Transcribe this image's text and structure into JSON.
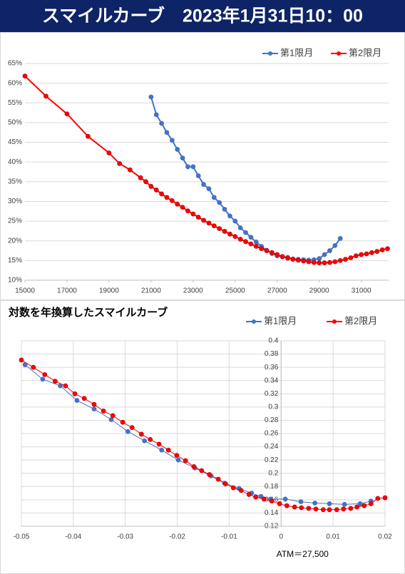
{
  "chart_data": [
    {
      "type": "line",
      "title": "スマイルカーブ　2023年1月31日10：00",
      "xlim": [
        15000,
        32300
      ],
      "xticks": [
        15000,
        17000,
        19000,
        21000,
        23000,
        25000,
        27000,
        29000,
        31000
      ],
      "ylim": [
        10,
        65
      ],
      "yticks": [
        {
          "value": 10,
          "label": "10%"
        },
        {
          "value": 15,
          "label": "15%"
        },
        {
          "value": 20,
          "label": "20%"
        },
        {
          "value": 25,
          "label": "25%"
        },
        {
          "value": 30,
          "label": "30%"
        },
        {
          "value": 35,
          "label": "35%"
        },
        {
          "value": 40,
          "label": "40%"
        },
        {
          "value": 45,
          "label": "45%"
        },
        {
          "value": 50,
          "label": "50%"
        },
        {
          "value": 55,
          "label": "55%"
        },
        {
          "value": 60,
          "label": "60%"
        },
        {
          "value": 65,
          "label": "65%"
        }
      ],
      "grid": "y",
      "legend": "top-right",
      "series": [
        {
          "name": "第1限月",
          "color": "#4472c4",
          "x": [
            21000,
            21250,
            21500,
            21750,
            22000,
            22250,
            22500,
            22750,
            23000,
            23250,
            23500,
            23750,
            24000,
            24250,
            24500,
            24750,
            25000,
            25250,
            25500,
            25750,
            26000,
            26250,
            26500,
            26750,
            27000,
            27250,
            27500,
            27750,
            28000,
            28250,
            28500,
            28750,
            29000,
            29250,
            29500,
            29750,
            30000
          ],
          "values": [
            56.5,
            52,
            49.8,
            47.5,
            45.5,
            43.2,
            41,
            38.8,
            38.8,
            36.5,
            34.3,
            33.2,
            31,
            29.7,
            28,
            26.3,
            25,
            23.3,
            22.1,
            20.9,
            19.7,
            18.6,
            17.6,
            16.8,
            16.2,
            15.9,
            15.8,
            15.4,
            15.3,
            15.2,
            15.1,
            15.2,
            15.5,
            16.5,
            17.5,
            18.8,
            20.6
          ]
        },
        {
          "name": "第2限月",
          "color": "#ff0000",
          "x": [
            15000,
            16000,
            17000,
            18000,
            19000,
            19500,
            20000,
            20500,
            20750,
            21000,
            21250,
            21500,
            21750,
            22000,
            22250,
            22500,
            22750,
            23000,
            23250,
            23500,
            23750,
            24000,
            24250,
            24500,
            24750,
            25000,
            25250,
            25500,
            25750,
            26000,
            26250,
            26500,
            26750,
            27000,
            27250,
            27500,
            27750,
            28000,
            28250,
            28500,
            28750,
            29000,
            29250,
            29500,
            29750,
            30000,
            30250,
            30500,
            30750,
            31000,
            31250,
            31500,
            31750,
            32000,
            32250
          ],
          "values": [
            61.8,
            56.7,
            52.2,
            46.5,
            42.3,
            39.6,
            38,
            36,
            35,
            33.8,
            32.9,
            31.9,
            31,
            30.2,
            29.3,
            28.5,
            27.6,
            26.8,
            26,
            25.2,
            24.5,
            23.8,
            23.1,
            22.4,
            21.7,
            21.1,
            20.4,
            19.8,
            19.2,
            18.6,
            18,
            17.5,
            17,
            16.5,
            16,
            15.6,
            15.3,
            15.1,
            14.9,
            14.7,
            14.5,
            14.4,
            14.4,
            14.5,
            14.7,
            15,
            15.3,
            15.7,
            16.2,
            16.5,
            16.7,
            17,
            17.3,
            17.7,
            18
          ]
        }
      ]
    },
    {
      "type": "line",
      "title": "対数を年換算したスマイルカーブ",
      "xlim": [
        -0.05,
        0.02
      ],
      "xticks": [
        -0.05,
        -0.04,
        -0.03,
        -0.02,
        -0.01,
        0,
        0.01,
        0.02
      ],
      "ylim": [
        0.12,
        0.4
      ],
      "yticks": [
        0.12,
        0.14,
        0.16,
        0.18,
        0.2,
        0.22,
        0.24,
        0.26,
        0.28,
        0.3,
        0.32,
        0.34,
        0.36,
        0.38,
        0.4
      ],
      "grid": "both",
      "legend": "top-right",
      "annotation": "ATM＝27,500",
      "series": [
        {
          "name": "第1限月",
          "color": "#4472c4",
          "x": [
            -0.0493,
            -0.0459,
            -0.0425,
            -0.0393,
            -0.036,
            -0.0327,
            -0.0295,
            -0.0263,
            -0.023,
            -0.0198,
            -0.0166,
            -0.0135,
            -0.0109,
            -0.0081,
            -0.0057,
            -0.0039,
            -0.002,
            0.0008,
            0.0038,
            0.0065,
            0.0093,
            0.0122,
            0.0152,
            0.0173
          ],
          "values": [
            0.364,
            0.342,
            0.332,
            0.31,
            0.297,
            0.281,
            0.263,
            0.249,
            0.235,
            0.22,
            0.208,
            0.196,
            0.185,
            0.177,
            0.17,
            0.165,
            0.161,
            0.161,
            0.157,
            0.155,
            0.154,
            0.153,
            0.154,
            0.158
          ]
        },
        {
          "name": "第2限月",
          "color": "#ff0000",
          "x": [
            -0.05,
            -0.0477,
            -0.0455,
            -0.0435,
            -0.0415,
            -0.0397,
            -0.0379,
            -0.036,
            -0.0342,
            -0.0324,
            -0.0305,
            -0.0287,
            -0.0269,
            -0.0252,
            -0.0235,
            -0.0217,
            -0.0201,
            -0.0184,
            -0.0168,
            -0.0153,
            -0.0138,
            -0.0121,
            -0.0107,
            -0.0092,
            -0.0077,
            -0.0062,
            -0.0049,
            -0.0033,
            -0.0018,
            -0.0003,
            0.0011,
            0.0026,
            0.0039,
            0.0053,
            0.0067,
            0.0081,
            0.0093,
            0.0107,
            0.012,
            0.0134,
            0.0146,
            0.016,
            0.0173,
            0.0186,
            0.02
          ],
          "values": [
            0.371,
            0.36,
            0.349,
            0.339,
            0.332,
            0.32,
            0.313,
            0.304,
            0.294,
            0.287,
            0.277,
            0.269,
            0.259,
            0.251,
            0.244,
            0.235,
            0.227,
            0.219,
            0.21,
            0.204,
            0.198,
            0.191,
            0.184,
            0.178,
            0.174,
            0.168,
            0.164,
            0.161,
            0.158,
            0.154,
            0.151,
            0.149,
            0.148,
            0.147,
            0.146,
            0.145,
            0.145,
            0.145,
            0.146,
            0.147,
            0.149,
            0.151,
            0.154,
            0.162,
            0.163
          ]
        }
      ]
    }
  ]
}
